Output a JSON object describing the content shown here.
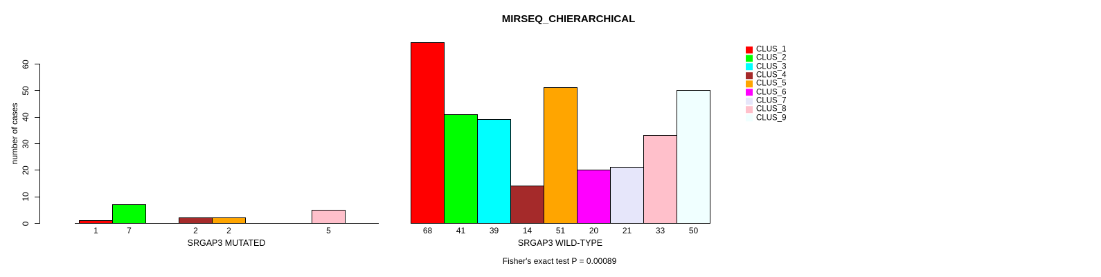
{
  "chart_data": {
    "type": "bar",
    "title": "MIRSEQ_CHIERARCHICAL",
    "ylabel": "number of cases",
    "ylim": [
      0,
      60
    ],
    "yticks": [
      0,
      10,
      20,
      30,
      40,
      50,
      60
    ],
    "grid": false,
    "legend_position": "right-top",
    "categories": [
      "CLUS_1",
      "CLUS_2",
      "CLUS_3",
      "CLUS_4",
      "CLUS_5",
      "CLUS_6",
      "CLUS_7",
      "CLUS_8",
      "CLUS_9"
    ],
    "colors": [
      "#FF0000",
      "#00FF00",
      "#00FFFF",
      "#A52A2A",
      "#FFA500",
      "#FF00FF",
      "#E6E6FA",
      "#FFC0CB",
      "#F0FFFF"
    ],
    "groups": [
      {
        "label": "SRGAP3 MUTATED",
        "values": [
          1,
          7,
          0,
          2,
          2,
          0,
          0,
          5,
          0
        ]
      },
      {
        "label": "SRGAP3 WILD-TYPE",
        "values": [
          68,
          41,
          39,
          14,
          51,
          20,
          21,
          33,
          50
        ]
      }
    ],
    "annotation": "Fisher's exact test P = 0.00089",
    "bar_border_color": "#000000"
  },
  "legend": {
    "items": [
      {
        "label": "CLUS_1",
        "color": "#FF0000"
      },
      {
        "label": "CLUS_2",
        "color": "#00FF00"
      },
      {
        "label": "CLUS_3",
        "color": "#00FFFF"
      },
      {
        "label": "CLUS_4",
        "color": "#A52A2A"
      },
      {
        "label": "CLUS_5",
        "color": "#FFA500"
      },
      {
        "label": "CLUS_6",
        "color": "#FF00FF"
      },
      {
        "label": "CLUS_7",
        "color": "#E6E6FA"
      },
      {
        "label": "CLUS_8",
        "color": "#FFC0CB"
      },
      {
        "label": "CLUS_9",
        "color": "#F0FFFF"
      }
    ]
  }
}
